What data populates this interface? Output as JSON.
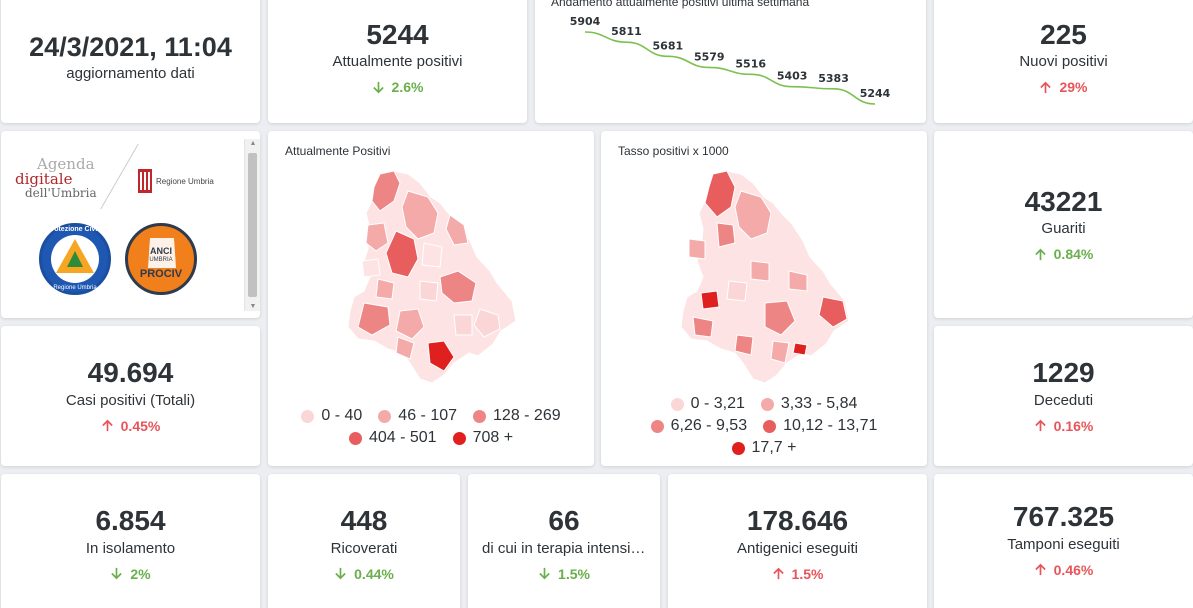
{
  "update": {
    "datetime": "24/3/2021, 11:04",
    "label": "aggiornamento dati"
  },
  "positivi": {
    "value": "5244",
    "label": "Attualmente positivi",
    "delta": "2.6%",
    "dir": "down"
  },
  "trend": {
    "title": "Andamento attualmente positivi ultima settimana",
    "labels": [
      "5904",
      "5811",
      "5681",
      "5579",
      "5516",
      "5403",
      "5383",
      "5244"
    ],
    "line_color": "#7cc04f"
  },
  "nuovi": {
    "value": "225",
    "label": "Nuovi positivi",
    "delta": "29%",
    "dir": "up"
  },
  "logos": {
    "agenda": [
      "Agenda",
      "digitale",
      "dell'Umbria"
    ],
    "regione": "Regione Umbria",
    "protezione": "Protezione Civile",
    "protezione_sub": "Regione Umbria",
    "anci": [
      "ANCI",
      "UMBRIA",
      "PROCIV"
    ]
  },
  "map1": {
    "title": "Attualmente Positivi",
    "legend": [
      {
        "label": "0 - 40",
        "color": "#fbd6d6"
      },
      {
        "label": "46 - 107",
        "color": "#f5aaaa"
      },
      {
        "label": "128 - 269",
        "color": "#ee8585"
      },
      {
        "label": "404 - 501",
        "color": "#e85d5d"
      },
      {
        "label": "708 +",
        "color": "#e0201f"
      }
    ]
  },
  "map2": {
    "title": "Tasso positivi x 1000",
    "legend": [
      {
        "label": "0 - 3,21",
        "color": "#fbd6d6"
      },
      {
        "label": "3,33 - 5,84",
        "color": "#f5aaaa"
      },
      {
        "label": "6,26 - 9,53",
        "color": "#ee8585"
      },
      {
        "label": "10,12 - 13,71",
        "color": "#e85d5d"
      },
      {
        "label": "17,7 +",
        "color": "#e0201f"
      }
    ]
  },
  "guariti": {
    "value": "43221",
    "label": "Guariti",
    "delta": "0.84%",
    "dir": "up_green"
  },
  "casi": {
    "value": "49.694",
    "label": "Casi positivi (Totali)",
    "delta": "0.45%",
    "dir": "up"
  },
  "deceduti": {
    "value": "1229",
    "label": "Deceduti",
    "delta": "0.16%",
    "dir": "up"
  },
  "isolamento": {
    "value": "6.854",
    "label": "In isolamento",
    "delta": "2%",
    "dir": "down"
  },
  "ricoverati": {
    "value": "448",
    "label": "Ricoverati",
    "delta": "0.44%",
    "dir": "down"
  },
  "terapia": {
    "value": "66",
    "label": "di cui in terapia intensiva",
    "delta": "1.5%",
    "dir": "down"
  },
  "antigenici": {
    "value": "178.646",
    "label": "Antigenici eseguiti",
    "delta": "1.5%",
    "dir": "up"
  },
  "tamponi": {
    "value": "767.325",
    "label": "Tamponi eseguiti",
    "delta": "0.46%",
    "dir": "up"
  },
  "colors": {
    "up": "#e8545a",
    "down": "#6aaf4c"
  }
}
